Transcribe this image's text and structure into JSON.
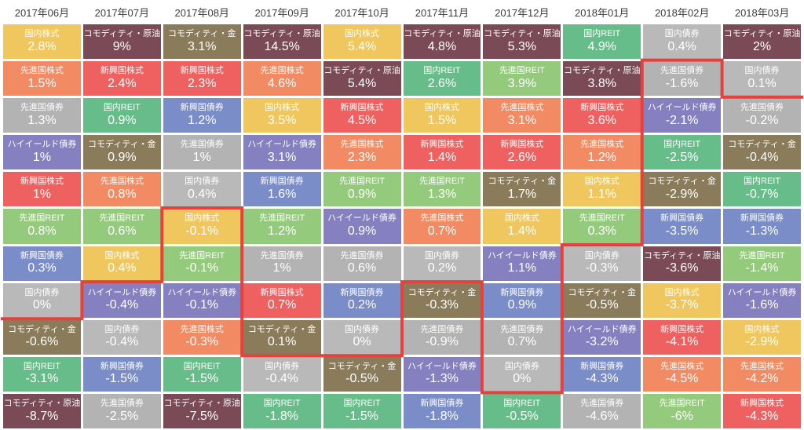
{
  "page": {
    "background": "#ffffff",
    "header_text_color": "#3d3d3d",
    "cell_text_color": "#ffffff"
  },
  "chart_data": {
    "type": "heatmap",
    "description": "Monthly asset class return ranking table (Japanese), 2017-06 to 2018-03",
    "legend_position": "none",
    "grid": "white gaps between colored cells",
    "asset_colors": {
      "国内株式": "#f0c75f",
      "先進国株式": "#f28b63",
      "新興国株式": "#ee6160",
      "国内債券": "#b9b9b9",
      "先進国債券": "#b3b3b3",
      "新興国債券": "#7a8dc8",
      "ハイイールド債券": "#8581c1",
      "国内REIT": "#67bd89",
      "先進国REIT": "#94ca7b",
      "コモディティ・金": "#8a7c5b",
      "コモディティ・原油": "#7a4a56"
    },
    "annotation_line": {
      "color": "#e6413c",
      "meaning": "stepped red line tracing the boundary between non-negative and negative monthly returns"
    },
    "columns": [
      {
        "month": "2017年06月",
        "cells": [
          {
            "asset": "国内株式",
            "label": "2.8%",
            "value": 2.8
          },
          {
            "asset": "先進国株式",
            "label": "1.5%",
            "value": 1.5
          },
          {
            "asset": "先進国債券",
            "label": "1.3%",
            "value": 1.3
          },
          {
            "asset": "ハイイールド債券",
            "label": "1%",
            "value": 1
          },
          {
            "asset": "新興国株式",
            "label": "1%",
            "value": 1
          },
          {
            "asset": "先進国REIT",
            "label": "0.8%",
            "value": 0.8
          },
          {
            "asset": "新興国債券",
            "label": "0.3%",
            "value": 0.3
          },
          {
            "asset": "国内債券",
            "label": "0%",
            "value": 0
          },
          {
            "asset": "コモディティ・金",
            "label": "-0.6%",
            "value": -0.6
          },
          {
            "asset": "国内REIT",
            "label": "-3.1%",
            "value": -3.1
          },
          {
            "asset": "コモディティ・原油",
            "label": "-8.7%",
            "value": -8.7
          }
        ]
      },
      {
        "month": "2017年07月",
        "cells": [
          {
            "asset": "コモディティ・原油",
            "label": "9%",
            "value": 9
          },
          {
            "asset": "新興国株式",
            "label": "2.4%",
            "value": 2.4
          },
          {
            "asset": "国内REIT",
            "label": "0.9%",
            "value": 0.9
          },
          {
            "asset": "コモディティ・金",
            "label": "0.9%",
            "value": 0.9
          },
          {
            "asset": "先進国株式",
            "label": "0.8%",
            "value": 0.8
          },
          {
            "asset": "先進国REIT",
            "label": "0.6%",
            "value": 0.6
          },
          {
            "asset": "国内株式",
            "label": "0.4%",
            "value": 0.4
          },
          {
            "asset": "ハイイールド債券",
            "label": "-0.4%",
            "value": -0.4
          },
          {
            "asset": "国内債券",
            "label": "-0.4%",
            "value": -0.4
          },
          {
            "asset": "新興国債券",
            "label": "-1.5%",
            "value": -1.5
          },
          {
            "asset": "先進国債券",
            "label": "-2.5%",
            "value": -2.5
          }
        ]
      },
      {
        "month": "2017年08月",
        "cells": [
          {
            "asset": "コモディティ・金",
            "label": "3.1%",
            "value": 3.1
          },
          {
            "asset": "新興国株式",
            "label": "2.3%",
            "value": 2.3
          },
          {
            "asset": "新興国債券",
            "label": "1.2%",
            "value": 1.2
          },
          {
            "asset": "先進国債券",
            "label": "1%",
            "value": 1
          },
          {
            "asset": "国内債券",
            "label": "0.4%",
            "value": 0.4
          },
          {
            "asset": "国内株式",
            "label": "-0.1%",
            "value": -0.1
          },
          {
            "asset": "先進国REIT",
            "label": "-0.1%",
            "value": -0.1
          },
          {
            "asset": "ハイイールド債券",
            "label": "-0.1%",
            "value": -0.1
          },
          {
            "asset": "先進国株式",
            "label": "-0.3%",
            "value": -0.3
          },
          {
            "asset": "国内REIT",
            "label": "-1.5%",
            "value": -1.5
          },
          {
            "asset": "コモディティ・原油",
            "label": "-7.5%",
            "value": -7.5
          }
        ]
      },
      {
        "month": "2017年09月",
        "cells": [
          {
            "asset": "コモディティ・原油",
            "label": "14.5%",
            "value": 14.5
          },
          {
            "asset": "先進国株式",
            "label": "4.6%",
            "value": 4.6
          },
          {
            "asset": "国内株式",
            "label": "3.5%",
            "value": 3.5
          },
          {
            "asset": "ハイイールド債券",
            "label": "3.1%",
            "value": 3.1
          },
          {
            "asset": "新興国債券",
            "label": "1.6%",
            "value": 1.6
          },
          {
            "asset": "先進国REIT",
            "label": "1.2%",
            "value": 1.2
          },
          {
            "asset": "先進国債券",
            "label": "1%",
            "value": 1
          },
          {
            "asset": "新興国株式",
            "label": "0.7%",
            "value": 0.7
          },
          {
            "asset": "コモディティ・金",
            "label": "0.1%",
            "value": 0.1
          },
          {
            "asset": "国内債券",
            "label": "-0.4%",
            "value": -0.4
          },
          {
            "asset": "国内REIT",
            "label": "-1.8%",
            "value": -1.8
          }
        ]
      },
      {
        "month": "2017年10月",
        "cells": [
          {
            "asset": "国内株式",
            "label": "5.4%",
            "value": 5.4
          },
          {
            "asset": "コモディティ・原油",
            "label": "5.4%",
            "value": 5.4
          },
          {
            "asset": "新興国株式",
            "label": "4.5%",
            "value": 4.5
          },
          {
            "asset": "先進国株式",
            "label": "2.3%",
            "value": 2.3
          },
          {
            "asset": "先進国REIT",
            "label": "0.9%",
            "value": 0.9
          },
          {
            "asset": "ハイイールド債券",
            "label": "0.9%",
            "value": 0.9
          },
          {
            "asset": "先進国債券",
            "label": "0.6%",
            "value": 0.6
          },
          {
            "asset": "新興国債券",
            "label": "0.2%",
            "value": 0.2
          },
          {
            "asset": "国内債券",
            "label": "0%",
            "value": 0
          },
          {
            "asset": "コモディティ・金",
            "label": "-0.5%",
            "value": -0.5
          },
          {
            "asset": "国内REIT",
            "label": "-1.5%",
            "value": -1.5
          }
        ]
      },
      {
        "month": "2017年11月",
        "cells": [
          {
            "asset": "コモディティ・原油",
            "label": "4.8%",
            "value": 4.8
          },
          {
            "asset": "国内REIT",
            "label": "2.6%",
            "value": 2.6
          },
          {
            "asset": "国内株式",
            "label": "1.5%",
            "value": 1.5
          },
          {
            "asset": "新興国株式",
            "label": "1.4%",
            "value": 1.4
          },
          {
            "asset": "先進国REIT",
            "label": "1.3%",
            "value": 1.3
          },
          {
            "asset": "先進国株式",
            "label": "0.7%",
            "value": 0.7
          },
          {
            "asset": "国内債券",
            "label": "0.2%",
            "value": 0.2
          },
          {
            "asset": "コモディティ・金",
            "label": "-0.3%",
            "value": -0.3
          },
          {
            "asset": "先進国債券",
            "label": "-0.9%",
            "value": -0.9
          },
          {
            "asset": "ハイイールド債券",
            "label": "-1.3%",
            "value": -1.3
          },
          {
            "asset": "新興国債券",
            "label": "-1.8%",
            "value": -1.8
          }
        ]
      },
      {
        "month": "2017年12月",
        "cells": [
          {
            "asset": "コモディティ・原油",
            "label": "5.3%",
            "value": 5.3
          },
          {
            "asset": "先進国REIT",
            "label": "3.9%",
            "value": 3.9
          },
          {
            "asset": "先進国株式",
            "label": "3.1%",
            "value": 3.1
          },
          {
            "asset": "新興国株式",
            "label": "2.6%",
            "value": 2.6
          },
          {
            "asset": "コモディティ・金",
            "label": "1.7%",
            "value": 1.7
          },
          {
            "asset": "国内株式",
            "label": "1.4%",
            "value": 1.4
          },
          {
            "asset": "ハイイールド債券",
            "label": "1.1%",
            "value": 1.1
          },
          {
            "asset": "新興国債券",
            "label": "0.9%",
            "value": 0.9
          },
          {
            "asset": "先進国債券",
            "label": "0.7%",
            "value": 0.7
          },
          {
            "asset": "国内債券",
            "label": "0%",
            "value": 0
          },
          {
            "asset": "国内REIT",
            "label": "-0.5%",
            "value": -0.5
          }
        ]
      },
      {
        "month": "2018年01月",
        "cells": [
          {
            "asset": "国内REIT",
            "label": "4.9%",
            "value": 4.9
          },
          {
            "asset": "コモディティ・原油",
            "label": "3.8%",
            "value": 3.8
          },
          {
            "asset": "新興国株式",
            "label": "3.6%",
            "value": 3.6
          },
          {
            "asset": "先進国株式",
            "label": "1.2%",
            "value": 1.2
          },
          {
            "asset": "国内株式",
            "label": "1.1%",
            "value": 1.1
          },
          {
            "asset": "先進国REIT",
            "label": "0.3%",
            "value": 0.3
          },
          {
            "asset": "国内債券",
            "label": "-0.3%",
            "value": -0.3
          },
          {
            "asset": "コモディティ・金",
            "label": "-0.5%",
            "value": -0.5
          },
          {
            "asset": "ハイイールド債券",
            "label": "-3.2%",
            "value": -3.2
          },
          {
            "asset": "新興国債券",
            "label": "-4.3%",
            "value": -4.3
          },
          {
            "asset": "先進国債券",
            "label": "-4.6%",
            "value": -4.6
          }
        ]
      },
      {
        "month": "2018年02月",
        "cells": [
          {
            "asset": "国内債券",
            "label": "0.4%",
            "value": 0.4
          },
          {
            "asset": "先進国債券",
            "label": "-1.6%",
            "value": -1.6
          },
          {
            "asset": "ハイイールド債券",
            "label": "-2.1%",
            "value": -2.1
          },
          {
            "asset": "国内REIT",
            "label": "-2.5%",
            "value": -2.5
          },
          {
            "asset": "コモディティ・金",
            "label": "-2.9%",
            "value": -2.9
          },
          {
            "asset": "新興国債券",
            "label": "-3.5%",
            "value": -3.5
          },
          {
            "asset": "コモディティ・原油",
            "label": "-3.6%",
            "value": -3.6
          },
          {
            "asset": "国内株式",
            "label": "-3.7%",
            "value": -3.7
          },
          {
            "asset": "新興国株式",
            "label": "-4.1%",
            "value": -4.1
          },
          {
            "asset": "先進国株式",
            "label": "-4.5%",
            "value": -4.5
          },
          {
            "asset": "先進国REIT",
            "label": "-6%",
            "value": -6
          }
        ]
      },
      {
        "month": "2018年03月",
        "cells": [
          {
            "asset": "コモディティ・原油",
            "label": "2%",
            "value": 2
          },
          {
            "asset": "国内債券",
            "label": "0.1%",
            "value": 0.1
          },
          {
            "asset": "先進国債券",
            "label": "-0.2%",
            "value": -0.2
          },
          {
            "asset": "コモディティ・金",
            "label": "-0.4%",
            "value": -0.4
          },
          {
            "asset": "国内REIT",
            "label": "-0.7%",
            "value": -0.7
          },
          {
            "asset": "新興国債券",
            "label": "-1.3%",
            "value": -1.3
          },
          {
            "asset": "先進国REIT",
            "label": "-1.4%",
            "value": -1.4
          },
          {
            "asset": "ハイイールド債券",
            "label": "-1.6%",
            "value": -1.6
          },
          {
            "asset": "国内株式",
            "label": "-2.9%",
            "value": -2.9
          },
          {
            "asset": "先進国株式",
            "label": "-4.2%",
            "value": -4.2
          },
          {
            "asset": "新興国株式",
            "label": "-4.3%",
            "value": -4.3
          }
        ]
      }
    ]
  }
}
